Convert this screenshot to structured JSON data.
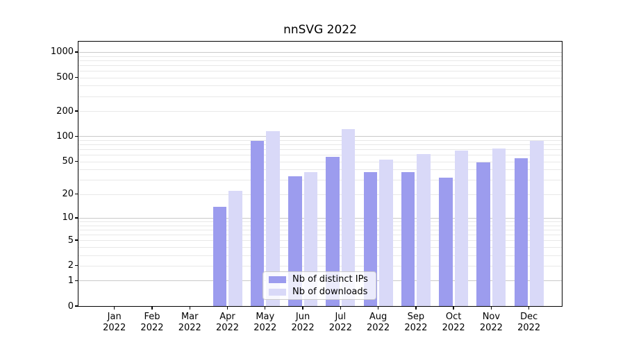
{
  "chart_data": {
    "type": "bar",
    "title": "nnSVG 2022",
    "categories": [
      "Jan",
      "Feb",
      "Mar",
      "Apr",
      "May",
      "Jun",
      "Jul",
      "Aug",
      "Sep",
      "Oct",
      "Nov",
      "Dec"
    ],
    "year_label": "2022",
    "series": [
      {
        "name": "Nb of distinct IPs",
        "color": "#9c9cee",
        "values": [
          0,
          0,
          0,
          14,
          88,
          33,
          57,
          37,
          37,
          32,
          49,
          55
        ]
      },
      {
        "name": "Nb of downloads",
        "color": "#d9d9f8",
        "values": [
          0,
          0,
          0,
          22,
          115,
          37,
          122,
          53,
          61,
          67,
          72,
          88
        ]
      }
    ],
    "xlabel": "",
    "ylabel": "",
    "y_scale": "log1p",
    "y_ticks": [
      0,
      1,
      2,
      5,
      10,
      20,
      50,
      100,
      200,
      500,
      1000
    ],
    "ylim": [
      0,
      1330
    ],
    "grid": "horizontal log major+minor",
    "legend_position": "lower center"
  },
  "colors": {
    "background": "#ffffff",
    "axis": "#000000",
    "major_grid": "#c9c9c9",
    "minor_grid": "#e8e8e8",
    "bar_ips": "#9c9cee",
    "bar_downloads": "#d9d9f8",
    "legend_border": "#cccccc"
  }
}
